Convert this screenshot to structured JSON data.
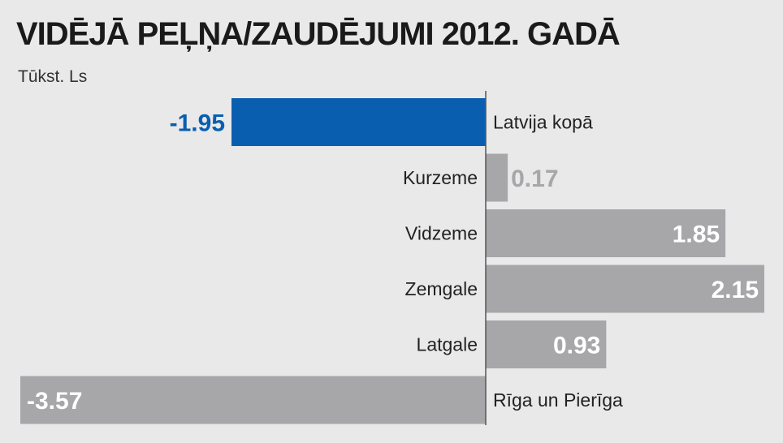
{
  "title": "VIDĒJĀ PEĻŅA/ZAUDĒJUMI 2012. GADĀ",
  "subtitle": "Tūkst. Ls",
  "colors": {
    "highlight": "#0a5eb0",
    "bar": "#a7a7aa",
    "axis": "#555555",
    "label_inside": "#ffffff",
    "label_outside_gray": "#a7a7aa"
  },
  "chart_data": {
    "type": "bar",
    "orientation": "horizontal",
    "categories": [
      "Latvija kopā",
      "Kurzeme",
      "Vidzeme",
      "Zemgale",
      "Latgale",
      "Rīga un Pierīga"
    ],
    "values": [
      -1.95,
      0.17,
      1.85,
      2.15,
      0.93,
      -3.57
    ],
    "value_labels": [
      "-1.95",
      "0.17",
      "1.85",
      "2.15",
      "0.93",
      "-3.57"
    ],
    "highlight_index": 0,
    "xlim": [
      -3.57,
      2.15
    ],
    "grid": false,
    "title": "VIDĒJĀ PEĻŅA/ZAUDĒJUMI 2012. GADĀ",
    "ylabel": "Tūkst. Ls"
  }
}
